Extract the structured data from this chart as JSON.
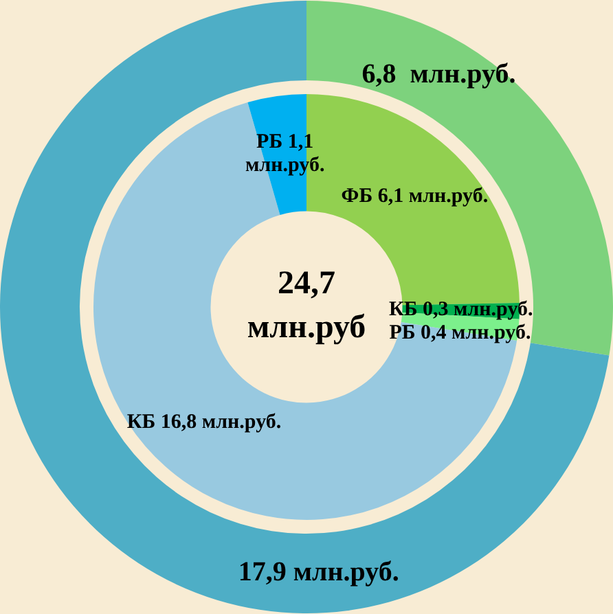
{
  "chart_data": [
    {
      "type": "donut",
      "categories": [
        null,
        null
      ],
      "values": [
        6.8,
        17.9
      ],
      "colors": [
        "#7dd27d",
        "#4eaec6"
      ],
      "value_labels": [
        "6,8  млн.руб.",
        "17,9 млн.руб."
      ]
    },
    {
      "type": "donut",
      "categories": [
        "ФБ",
        "КБ",
        "РБ",
        "КБ",
        "РБ"
      ],
      "values": [
        6.1,
        0.3,
        0.4,
        16.8,
        1.1
      ],
      "colors": [
        "#92d050",
        "#00b050",
        "#7cf08c",
        "#98c9e0",
        "#00b0f0"
      ],
      "value_labels": [
        "6,1 млн.руб.",
        "0,3 млн.руб.",
        "0,4 млн.руб.",
        "16,8 млн.руб.",
        "1,1 млн.руб."
      ],
      "annotations": [
        "24,7 млн.руб"
      ]
    }
  ]
}
